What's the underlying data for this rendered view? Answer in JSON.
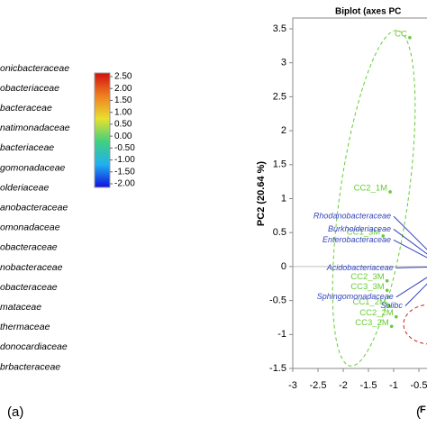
{
  "panel_labels": [
    "(a)",
    "("
  ],
  "chart_data": [
    {
      "type": "heatmap",
      "categories": [
        "onicbacteraceae",
        "obacteriaceae",
        "bacteraceae",
        "natimonadaceae",
        "bacteriaceae",
        "gomonadaceae",
        "olderiaceae",
        "anobacteraceae",
        "omonadaceae",
        "obacteraceae",
        "nobacteraceae",
        "obacteraceae",
        "mataceae",
        "thermaceae",
        "donocardiaceae",
        "brbacteraceae"
      ],
      "clim": [
        -2,
        2.5
      ],
      "colors": [
        "#1010e0",
        "#20b0f0",
        "#40d080",
        "#e8e030",
        "#f08020",
        "#d01010"
      ],
      "cticks": [
        {
          "value": 2.5,
          "label": "2.50"
        },
        {
          "value": 2,
          "label": "2.00"
        },
        {
          "value": 1.5,
          "label": "1.50"
        },
        {
          "value": 1,
          "label": "1.00"
        },
        {
          "value": 0.5,
          "label": "0.50"
        },
        {
          "value": 0,
          "label": "0.00"
        },
        {
          "value": -0.5,
          "label": "-0.50"
        },
        {
          "value": -1,
          "label": "-1.00"
        },
        {
          "value": -1.5,
          "label": "-1.50"
        },
        {
          "value": -2,
          "label": "-2.00"
        }
      ]
    },
    {
      "type": "scatter",
      "title": "Biplot (axes PC",
      "ylabel": "PC2 (20.64 %)",
      "xlabel": "F",
      "xlim": [
        -3,
        0.5
      ],
      "ylim": [
        -1.5,
        3.5
      ],
      "xticks": [
        -3,
        -2.5,
        -2,
        -1.5,
        -1,
        -0.5
      ],
      "yticks": [
        3.5,
        3,
        2.5,
        2,
        1.5,
        1,
        0.5,
        0,
        -0.5,
        -1,
        -1.5
      ],
      "series": [
        {
          "color": "#66cc33",
          "labels": [
            "CC",
            "CC2_1M",
            "CC1_3M",
            "CC2_3M",
            "CC3_3M",
            "CC1_2M",
            "CC2_2M",
            "CC3_2M"
          ],
          "x": [
            -0.68,
            -1.07,
            -1.21,
            -1.13,
            -1.13,
            -1.09,
            -0.95,
            -1.04
          ],
          "values": [
            3.37,
            1.1,
            0.45,
            -0.21,
            -0.35,
            -0.58,
            -0.74,
            -0.88
          ]
        },
        {
          "color": "#3344bb",
          "vectors": true,
          "labels": [
            "Rhodanobacteraceae",
            "Burkholderiaceae",
            "Enterobacteraceae",
            "Acidobacteriaceae",
            "Sphingomonadaceae",
            "Solibc"
          ],
          "x": [
            -1.0,
            -1.0,
            -1.0,
            -0.95,
            -0.95,
            -0.77
          ],
          "values": [
            0.74,
            0.55,
            0.39,
            -0.02,
            -0.45,
            -0.58
          ]
        }
      ]
    }
  ]
}
